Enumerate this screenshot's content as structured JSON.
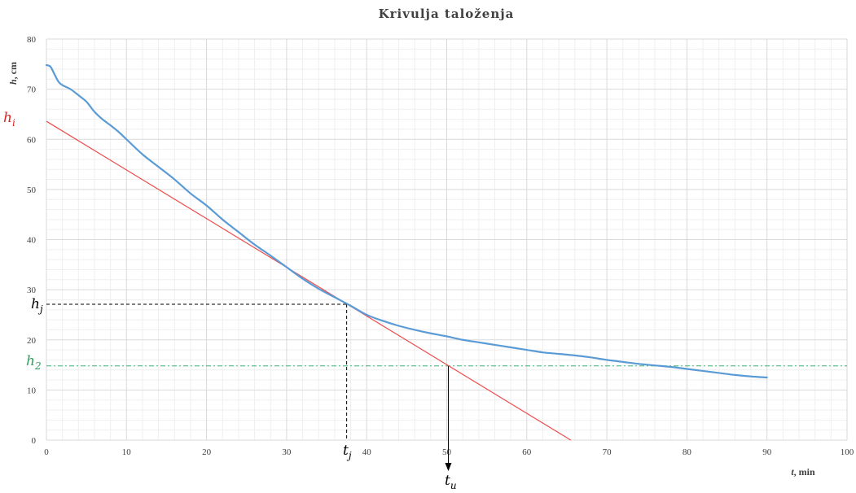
{
  "chart_data": {
    "type": "line",
    "title": "Krivulja taloženja",
    "xlabel_main": "t",
    "xlabel_unit": ", min",
    "ylabel_main": "h",
    "ylabel_unit": ", cm",
    "xlim": [
      0,
      100
    ],
    "ylim": [
      0,
      80
    ],
    "xticks": [
      0,
      10,
      20,
      30,
      40,
      50,
      60,
      70,
      80,
      90,
      100
    ],
    "yticks": [
      0,
      10,
      20,
      30,
      40,
      50,
      60,
      70,
      80
    ],
    "grid": true,
    "colors": {
      "curve": "#5b9bd5",
      "tangent": "#ed4b4b",
      "h2_line": "#3cb371",
      "guide": "#000000",
      "grid_major": "#d9d9d9",
      "grid_minor": "#efefef",
      "hi_label": "#e02020",
      "h2_label": "#2e9e5e"
    },
    "series": [
      {
        "x": [
          0,
          0.5,
          1,
          1.5,
          2,
          3,
          4,
          5,
          6,
          7,
          8,
          9,
          10,
          12,
          14,
          16,
          18,
          20,
          22,
          24,
          26,
          28,
          30,
          32,
          34,
          36,
          38,
          40,
          42,
          44,
          46,
          48,
          50,
          52,
          54,
          56,
          58,
          60,
          62,
          64,
          66,
          68,
          70,
          72,
          74,
          76,
          78,
          80,
          82,
          84,
          86,
          88,
          90
        ],
        "y": [
          74.8,
          74.5,
          73,
          71.5,
          70.8,
          70,
          68.8,
          67.5,
          65.5,
          64,
          62.8,
          61.5,
          60,
          57,
          54.5,
          52,
          49.2,
          46.8,
          44,
          41.5,
          39,
          36.8,
          34.5,
          32.2,
          30.2,
          28.5,
          26.8,
          25,
          23.8,
          22.8,
          22,
          21.3,
          20.7,
          20,
          19.5,
          19,
          18.5,
          18,
          17.5,
          17.2,
          16.9,
          16.5,
          16,
          15.6,
          15.2,
          14.9,
          14.6,
          14.2,
          13.8,
          13.4,
          13.0,
          12.7,
          12.5
        ]
      },
      {
        "x": [
          0,
          65.5
        ],
        "y": [
          63.6,
          0
        ]
      }
    ],
    "h2_value": 14.8,
    "tj_x": 37.5,
    "hj_y": 27.1,
    "tu_x": 50.2,
    "annotations": {
      "hi": "h",
      "hi_sub": "i",
      "hj": "h",
      "hj_sub": "j",
      "h2": "h",
      "h2_sub": "2",
      "tj": "t",
      "tj_sub": "j",
      "tu": "t",
      "tu_sub": "u"
    }
  }
}
